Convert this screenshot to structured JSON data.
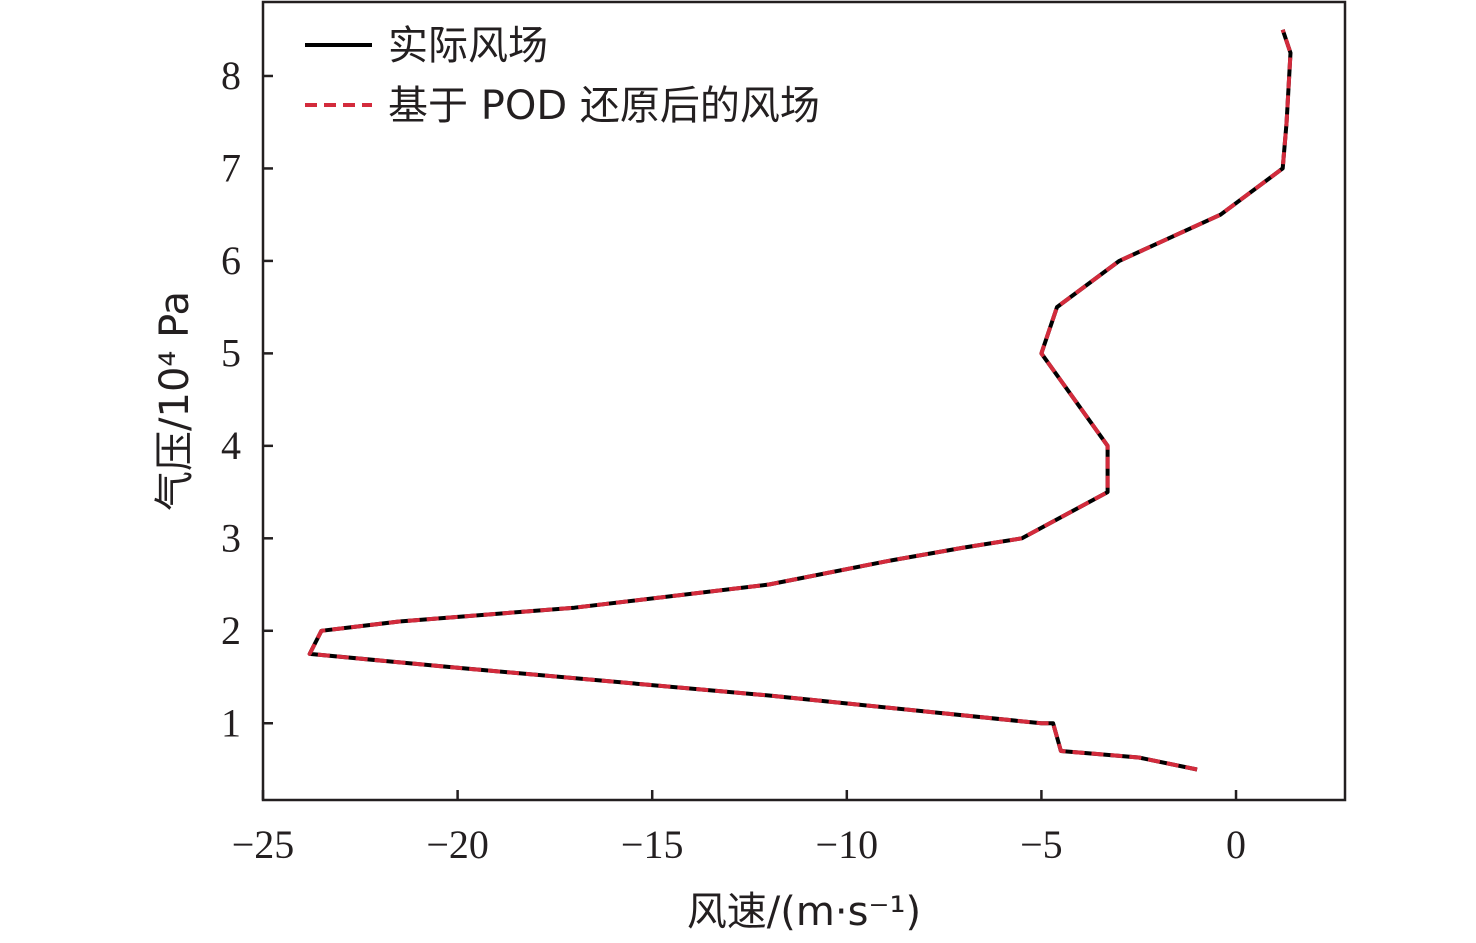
{
  "chart_data": {
    "type": "line",
    "title": "",
    "xlabel": "风速/(m·s⁻¹)",
    "ylabel": "气压/10⁴ Pa",
    "xlim": [
      -25,
      2.8
    ],
    "ylim": [
      0.17,
      8.8
    ],
    "xticks": [
      -25,
      -20,
      -15,
      -10,
      -5,
      0
    ],
    "yticks": [
      1,
      2,
      3,
      4,
      5,
      6,
      7,
      8
    ],
    "xtick_labels": [
      "−25",
      "−20",
      "−15",
      "−10",
      "−5",
      "0"
    ],
    "ytick_labels": [
      "1",
      "2",
      "3",
      "4",
      "5",
      "6",
      "7",
      "8"
    ],
    "legend_position": "top-left",
    "grid": false,
    "series": [
      {
        "name": "实际风场",
        "color": "#000000",
        "style": "solid",
        "x": [
          -1.0,
          -2.5,
          -4.5,
          -4.7,
          -5.0,
          -12.0,
          -20.0,
          -23.8,
          -23.5,
          -21.5,
          -17.0,
          -12.0,
          -9.0,
          -7.0,
          -5.5,
          -3.3,
          -3.3,
          -5.0,
          -4.6,
          -3.0,
          -0.4,
          1.2,
          1.3,
          1.4,
          1.2
        ],
        "y": [
          0.5,
          0.63,
          0.7,
          1.0,
          1.0,
          1.3,
          1.6,
          1.75,
          2.0,
          2.1,
          2.25,
          2.5,
          2.75,
          2.9,
          3.0,
          3.5,
          4.0,
          5.0,
          5.5,
          6.0,
          6.5,
          7.0,
          7.5,
          8.25,
          8.5
        ]
      },
      {
        "name": "基于 POD 还原后的风场",
        "color": "#d32b3c",
        "style": "dashed",
        "x": [
          -1.0,
          -2.5,
          -4.5,
          -4.7,
          -5.0,
          -12.0,
          -20.0,
          -23.8,
          -23.5,
          -21.5,
          -17.0,
          -12.0,
          -9.0,
          -7.0,
          -5.5,
          -3.3,
          -3.3,
          -5.0,
          -4.6,
          -3.0,
          -0.4,
          1.2,
          1.3,
          1.4,
          1.2
        ],
        "y": [
          0.5,
          0.63,
          0.7,
          1.0,
          1.0,
          1.3,
          1.6,
          1.75,
          2.0,
          2.1,
          2.25,
          2.5,
          2.75,
          2.9,
          3.0,
          3.5,
          4.0,
          5.0,
          5.5,
          6.0,
          6.5,
          7.0,
          7.5,
          8.25,
          8.5
        ]
      }
    ]
  }
}
